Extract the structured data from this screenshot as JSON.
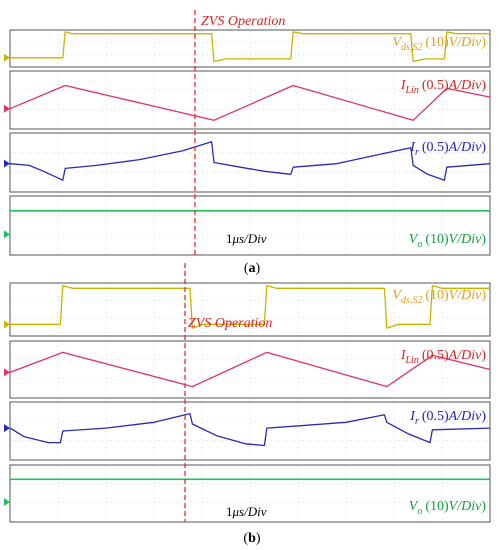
{
  "chart_data": [
    {
      "type": "line",
      "caption": "(a)",
      "annotation": "ZVS Operation",
      "time_scale": "1μs/Div",
      "x_unit_divisions": 10,
      "series": [
        {
          "label": {
            "main": "V",
            "sub": "ds,S2",
            "scale": "(10V/Div)"
          },
          "color": "#c8b400",
          "text_color": "#e0a020",
          "x": [
            0,
            1.1,
            1.15,
            1.3,
            4.2,
            4.25,
            4.5,
            5.85,
            5.9,
            6.1,
            8.35,
            8.4,
            8.65,
            9.05,
            9.1,
            9.3,
            10
          ],
          "y": [
            0.25,
            0.25,
            0.95,
            0.9,
            0.9,
            0.15,
            0.22,
            0.22,
            0.95,
            0.9,
            0.9,
            0.15,
            0.22,
            0.22,
            0.95,
            0.9,
            0.9
          ]
        },
        {
          "label": {
            "main": "I",
            "sub": "Lin",
            "scale": "(0.5A/Div)"
          },
          "color": "#e0306a",
          "text_color": "#e02020",
          "x": [
            0,
            1.15,
            4.25,
            5.9,
            8.4,
            9.1,
            10
          ],
          "y": [
            0.35,
            0.75,
            0.15,
            0.75,
            0.15,
            0.7,
            0.55
          ]
        },
        {
          "label": {
            "main": "I",
            "sub": "r",
            "scale": "(0.5A/Div)"
          },
          "color": "#2a2ab8",
          "text_color": "#2020d0",
          "x": [
            0,
            0.4,
            0.7,
            1.1,
            1.15,
            1.8,
            2.7,
            3.6,
            4.2,
            4.25,
            4.8,
            5.3,
            5.85,
            5.9,
            6.8,
            7.6,
            8.35,
            8.4,
            8.7,
            9.05,
            9.1,
            10
          ],
          "y": [
            0.48,
            0.45,
            0.35,
            0.2,
            0.4,
            0.45,
            0.55,
            0.7,
            0.85,
            0.5,
            0.42,
            0.35,
            0.3,
            0.42,
            0.48,
            0.62,
            0.75,
            0.45,
            0.3,
            0.2,
            0.42,
            0.48
          ]
        },
        {
          "label": {
            "main": "V",
            "sub": "o",
            "scale": "(10V/Div)"
          },
          "color": "#20c060",
          "text_color": "#10a040",
          "x": [
            0,
            10
          ],
          "y": [
            0.75,
            0.75
          ]
        }
      ]
    },
    {
      "type": "line",
      "caption": "(b)",
      "annotation": "ZVS Operation",
      "time_scale": "1μs/Div",
      "x_unit_divisions": 10,
      "series": [
        {
          "label": {
            "main": "V",
            "sub": "ds,S2",
            "scale": "(10V/Div)"
          },
          "color": "#c8b400",
          "text_color": "#e0a020",
          "x": [
            0,
            1.05,
            1.1,
            1.3,
            3.75,
            3.8,
            4.05,
            5.3,
            5.35,
            5.55,
            7.8,
            7.85,
            8.1,
            8.75,
            8.8,
            9.0,
            10
          ],
          "y": [
            0.22,
            0.22,
            0.95,
            0.9,
            0.9,
            0.15,
            0.22,
            0.22,
            0.95,
            0.9,
            0.9,
            0.15,
            0.22,
            0.22,
            0.95,
            0.9,
            0.9
          ]
        },
        {
          "label": {
            "main": "I",
            "sub": "Lin",
            "scale": "(0.5A/Div)"
          },
          "color": "#e0306a",
          "text_color": "#e02020",
          "x": [
            0,
            1.1,
            3.8,
            5.35,
            7.85,
            8.8,
            10
          ],
          "y": [
            0.45,
            0.8,
            0.2,
            0.8,
            0.2,
            0.75,
            0.5
          ]
        },
        {
          "label": {
            "main": "I",
            "sub": "r",
            "scale": "(0.5A/Div)"
          },
          "color": "#2a2ab8",
          "text_color": "#2020d0",
          "x": [
            0,
            0.3,
            0.8,
            1.05,
            1.1,
            2.0,
            3.0,
            3.75,
            3.8,
            4.3,
            4.9,
            5.3,
            5.35,
            6.2,
            7.0,
            7.8,
            7.85,
            8.3,
            8.75,
            8.8,
            10
          ],
          "y": [
            0.55,
            0.4,
            0.3,
            0.3,
            0.5,
            0.55,
            0.65,
            0.8,
            0.62,
            0.42,
            0.28,
            0.25,
            0.55,
            0.6,
            0.65,
            0.78,
            0.65,
            0.45,
            0.3,
            0.52,
            0.55
          ]
        },
        {
          "label": {
            "main": "V",
            "sub": "o",
            "scale": "(10V/Div)"
          },
          "color": "#20c060",
          "text_color": "#10a040",
          "x": [
            0,
            10
          ],
          "y": [
            0.75,
            0.75
          ]
        }
      ]
    }
  ]
}
